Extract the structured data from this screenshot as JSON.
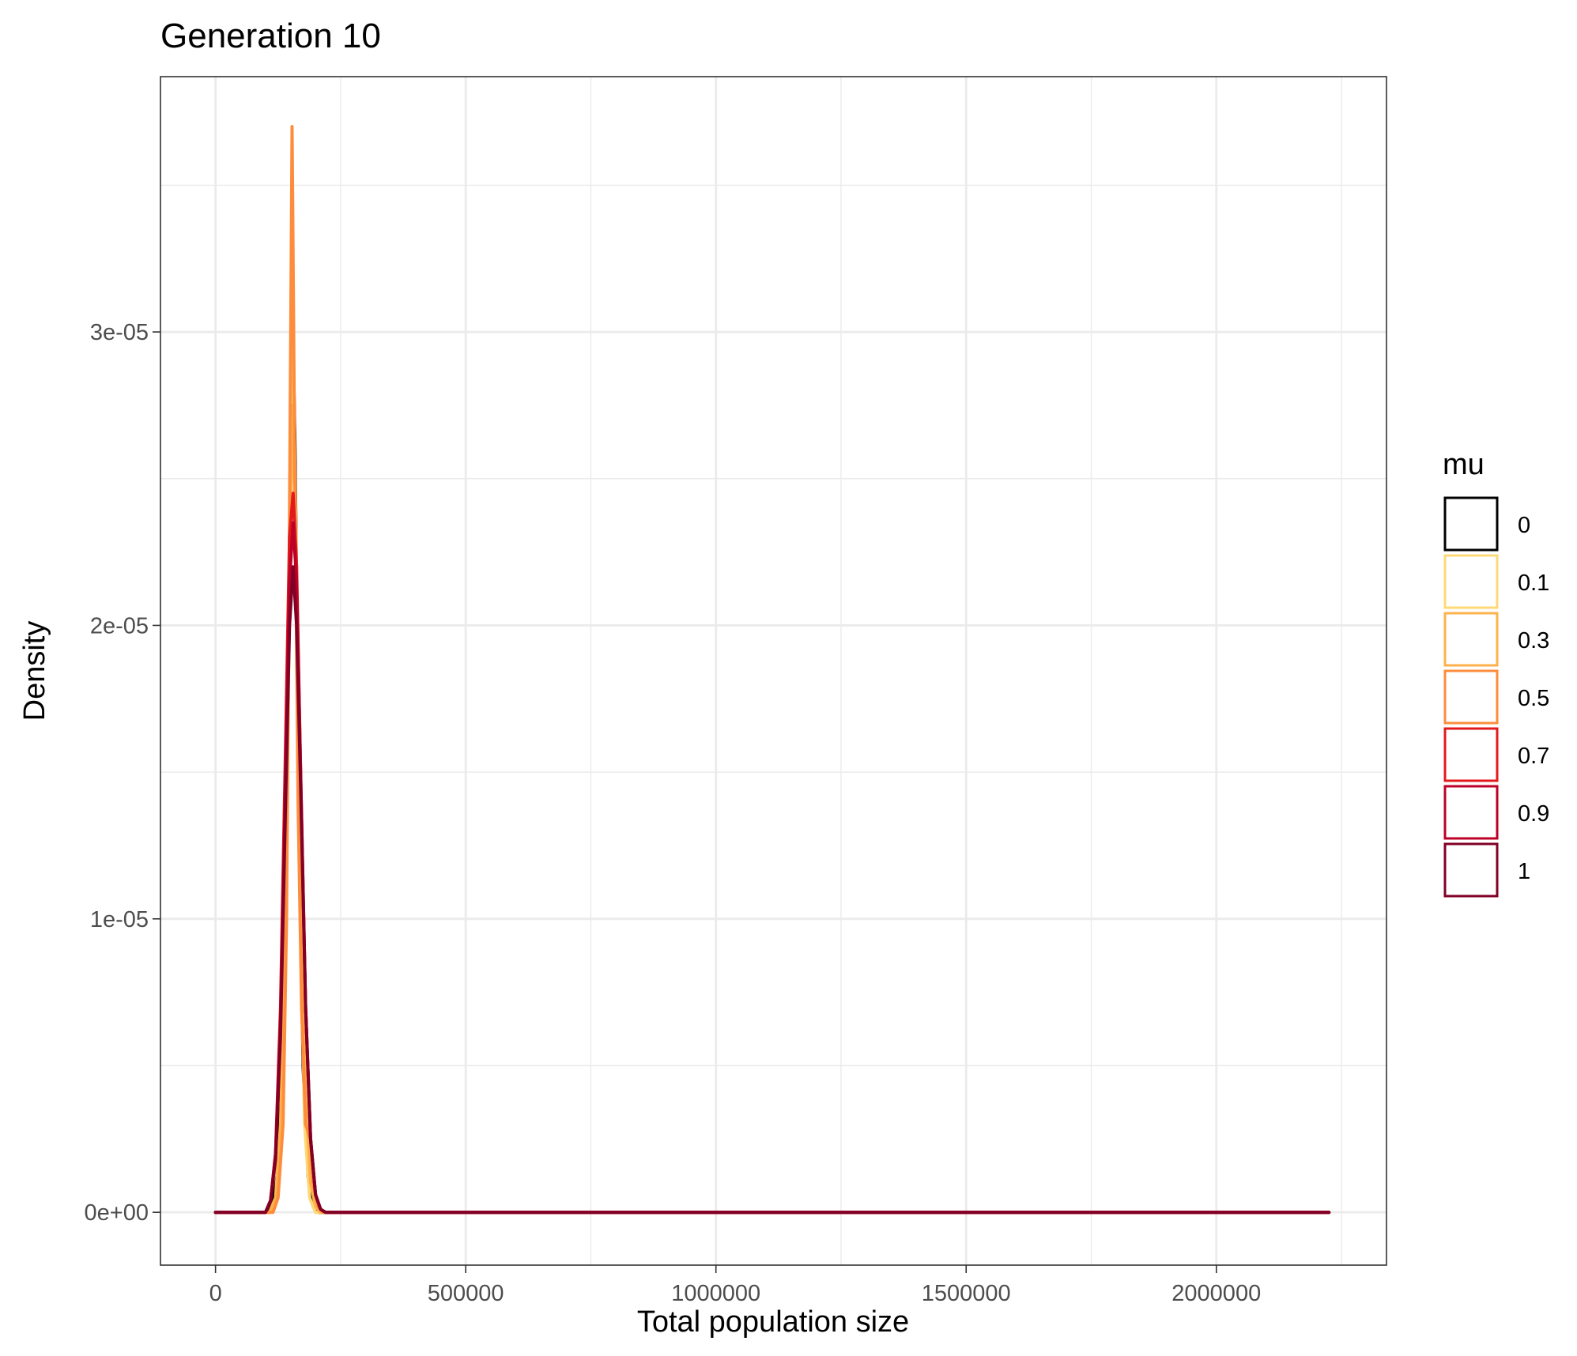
{
  "chart_data": {
    "type": "line",
    "title": "Generation 10",
    "xlabel": "Total population size",
    "ylabel": "Density",
    "xlim": [
      -110000,
      2340000
    ],
    "ylim": [
      -1.8e-06,
      3.87e-05
    ],
    "x_ticks": [
      0,
      500000,
      1000000,
      1500000,
      2000000
    ],
    "x_tick_labels": [
      "0",
      "500000",
      "1000000",
      "1500000",
      "2000000"
    ],
    "y_ticks": [
      0,
      1e-05,
      2e-05,
      3e-05
    ],
    "y_tick_labels": [
      "0e+00",
      "1e-05",
      "2e-05",
      "3e-05"
    ],
    "grid": true,
    "legend": {
      "title": "mu",
      "position": "right"
    },
    "series": [
      {
        "name": "0",
        "color": "#000000",
        "points": [
          [
            0,
            0
          ],
          [
            100000,
            0
          ],
          [
            115000,
            3e-07
          ],
          [
            125000,
            1.5e-06
          ],
          [
            135000,
            6e-06
          ],
          [
            145000,
            1.7e-05
          ],
          [
            152000,
            2.8e-05
          ],
          [
            155000,
            2.97e-05
          ],
          [
            159000,
            2.6e-05
          ],
          [
            166000,
            1.5e-05
          ],
          [
            175000,
            5e-06
          ],
          [
            185000,
            1.2e-06
          ],
          [
            195000,
            2e-07
          ],
          [
            205000,
            0
          ],
          [
            2225000,
            0
          ]
        ]
      },
      {
        "name": "0.1",
        "color": "#fed976",
        "points": [
          [
            0,
            0
          ],
          [
            110000,
            0
          ],
          [
            122000,
            5e-07
          ],
          [
            132000,
            3e-06
          ],
          [
            142000,
            1.2e-05
          ],
          [
            150000,
            2.4e-05
          ],
          [
            155000,
            2.95e-05
          ],
          [
            160000,
            2.4e-05
          ],
          [
            168000,
            1.2e-05
          ],
          [
            178000,
            3e-06
          ],
          [
            188000,
            5e-07
          ],
          [
            200000,
            0
          ],
          [
            2225000,
            0
          ]
        ]
      },
      {
        "name": "0.3",
        "color": "#feb24c",
        "points": [
          [
            0,
            0
          ],
          [
            108000,
            0
          ],
          [
            120000,
            5e-07
          ],
          [
            130000,
            3e-06
          ],
          [
            140000,
            1e-05
          ],
          [
            148000,
            2.2e-05
          ],
          [
            155000,
            2.75e-05
          ],
          [
            162000,
            2.2e-05
          ],
          [
            170000,
            1.2e-05
          ],
          [
            180000,
            4e-06
          ],
          [
            190000,
            1e-06
          ],
          [
            200000,
            2e-07
          ],
          [
            210000,
            0
          ],
          [
            2225000,
            0
          ]
        ]
      },
      {
        "name": "0.5",
        "color": "#fd8d3c",
        "points": [
          [
            0,
            0
          ],
          [
            115000,
            0
          ],
          [
            125000,
            5e-07
          ],
          [
            135000,
            3e-06
          ],
          [
            142000,
            1e-05
          ],
          [
            148000,
            2.4e-05
          ],
          [
            153000,
            3.7e-05
          ],
          [
            158000,
            2.6e-05
          ],
          [
            165000,
            1.4e-05
          ],
          [
            172000,
            7e-06
          ],
          [
            180000,
            3e-06
          ],
          [
            190000,
            2.5e-06
          ],
          [
            195000,
            1e-06
          ],
          [
            205000,
            2e-07
          ],
          [
            215000,
            0
          ],
          [
            2225000,
            0
          ]
        ]
      },
      {
        "name": "0.7",
        "color": "#e31a1c",
        "points": [
          [
            0,
            0
          ],
          [
            100000,
            0
          ],
          [
            110000,
            4e-07
          ],
          [
            120000,
            2e-06
          ],
          [
            130000,
            7e-06
          ],
          [
            140000,
            1.6e-05
          ],
          [
            148000,
            2.3e-05
          ],
          [
            155000,
            2.45e-05
          ],
          [
            162000,
            2.2e-05
          ],
          [
            170000,
            1.5e-05
          ],
          [
            180000,
            7e-06
          ],
          [
            190000,
            2.5e-06
          ],
          [
            200000,
            6e-07
          ],
          [
            210000,
            1e-07
          ],
          [
            220000,
            0
          ],
          [
            2225000,
            0
          ]
        ]
      },
      {
        "name": "0.9",
        "color": "#bd0026",
        "points": [
          [
            0,
            0
          ],
          [
            100000,
            0
          ],
          [
            110000,
            4e-07
          ],
          [
            120000,
            2e-06
          ],
          [
            130000,
            6.5e-06
          ],
          [
            140000,
            1.5e-05
          ],
          [
            148000,
            2.15e-05
          ],
          [
            155000,
            2.35e-05
          ],
          [
            162000,
            2.15e-05
          ],
          [
            170000,
            1.5e-05
          ],
          [
            180000,
            7e-06
          ],
          [
            190000,
            2.5e-06
          ],
          [
            200000,
            6e-07
          ],
          [
            210000,
            1e-07
          ],
          [
            220000,
            0
          ],
          [
            2225000,
            0
          ]
        ]
      },
      {
        "name": "1",
        "color": "#800026",
        "points": [
          [
            0,
            0
          ],
          [
            100000,
            0
          ],
          [
            110000,
            4e-07
          ],
          [
            120000,
            1.8e-06
          ],
          [
            130000,
            6e-06
          ],
          [
            140000,
            1.4e-05
          ],
          [
            148000,
            2e-05
          ],
          [
            155000,
            2.2e-05
          ],
          [
            162000,
            2e-05
          ],
          [
            170000,
            1.45e-05
          ],
          [
            180000,
            7e-06
          ],
          [
            190000,
            2.5e-06
          ],
          [
            200000,
            6e-07
          ],
          [
            210000,
            1e-07
          ],
          [
            220000,
            0
          ],
          [
            2225000,
            0
          ]
        ]
      }
    ]
  }
}
